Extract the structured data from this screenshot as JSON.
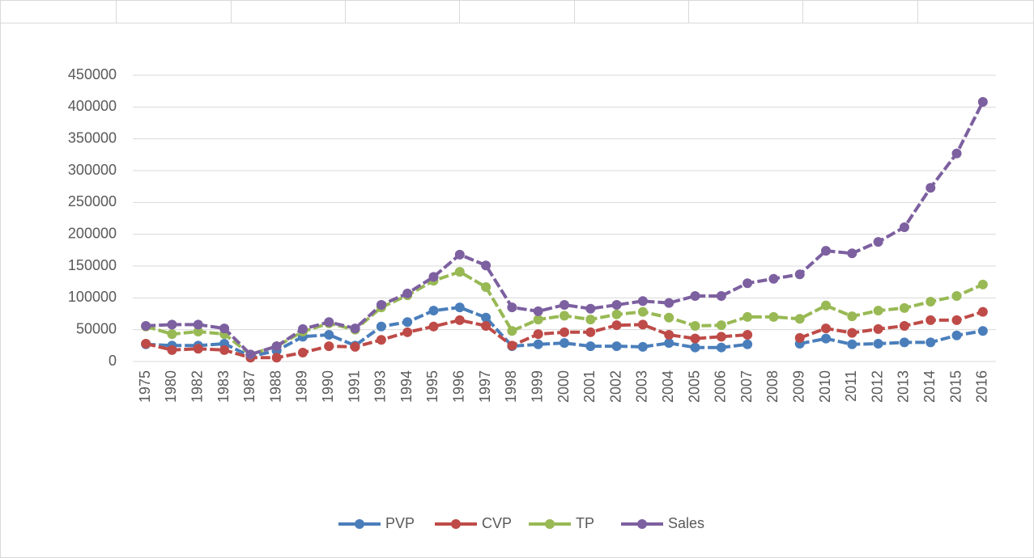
{
  "chart_data": {
    "type": "line",
    "categories": [
      "1975",
      "1980",
      "1982",
      "1983",
      "1987",
      "1988",
      "1989",
      "1990",
      "1991",
      "1993",
      "1994",
      "1995",
      "1996",
      "1997",
      "1998",
      "1999",
      "2000",
      "2001",
      "2002",
      "2003",
      "2004",
      "2005",
      "2006",
      "2007",
      "2008",
      "2009",
      "2010",
      "2011",
      "2012",
      "2013",
      "2014",
      "2015",
      "2016"
    ],
    "series": [
      {
        "name": "PVP",
        "color": "#4a7ebb",
        "values": [
          27000,
          25000,
          25000,
          28000,
          8000,
          17000,
          39000,
          42000,
          25000,
          55000,
          62000,
          80000,
          85000,
          69000,
          24000,
          27000,
          29000,
          24000,
          24000,
          23000,
          29000,
          22000,
          22000,
          27000,
          null,
          28000,
          36000,
          27000,
          28000,
          30000,
          30000,
          41000,
          48000
        ]
      },
      {
        "name": "CVP",
        "color": "#be4b48",
        "values": [
          28000,
          18000,
          20000,
          18000,
          6000,
          6000,
          14000,
          24000,
          23000,
          34000,
          46000,
          55000,
          65000,
          56000,
          25000,
          43000,
          46000,
          46000,
          57000,
          58000,
          42000,
          36000,
          39000,
          42000,
          null,
          37000,
          52000,
          45000,
          51000,
          56000,
          65000,
          65000,
          78000
        ]
      },
      {
        "name": "TP",
        "color": "#98b954",
        "values": [
          55000,
          43000,
          47000,
          43000,
          11000,
          24000,
          47000,
          60000,
          50000,
          85000,
          104000,
          127000,
          141000,
          117000,
          48000,
          66000,
          72000,
          66000,
          74000,
          78000,
          69000,
          56000,
          57000,
          70000,
          70000,
          67000,
          88000,
          71000,
          80000,
          84000,
          94000,
          103000,
          121000
        ]
      },
      {
        "name": "Sales",
        "color": "#7d60a0",
        "values": [
          56000,
          58000,
          58000,
          52000,
          11000,
          24000,
          51000,
          62000,
          52000,
          89000,
          107000,
          133000,
          168000,
          151000,
          85000,
          79000,
          89000,
          83000,
          89000,
          95000,
          92000,
          103000,
          103000,
          123000,
          130000,
          137000,
          174000,
          170000,
          188000,
          211000,
          273000,
          327000,
          408000
        ]
      }
    ],
    "ylim": [
      0,
      450000
    ],
    "yticks": [
      0,
      50000,
      100000,
      150000,
      200000,
      250000,
      300000,
      350000,
      400000,
      450000
    ],
    "grid": true
  }
}
